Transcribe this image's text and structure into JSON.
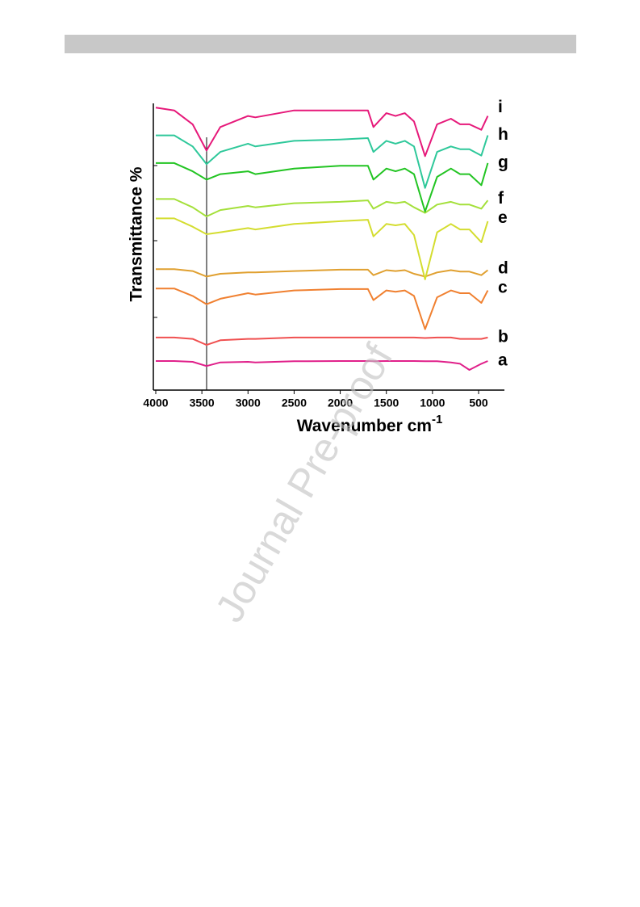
{
  "watermark": "Journal Pre-proof",
  "chart_data": {
    "type": "line",
    "ylabel": "Transmittance %",
    "xlabel": "Wavenumber cm",
    "xlabel_superscript": "-1",
    "xlim": [
      4000,
      220
    ],
    "ylim": [
      0,
      105
    ],
    "xticks": [
      4000,
      3500,
      3000,
      2500,
      2000,
      1500,
      1000,
      500
    ],
    "x": [
      4000,
      3800,
      3600,
      3450,
      3300,
      3000,
      2920,
      2500,
      2000,
      1700,
      1640,
      1500,
      1400,
      1300,
      1200,
      1080,
      950,
      800,
      700,
      600,
      470,
      400
    ],
    "series": [
      {
        "name": "a",
        "color": "#e0208a",
        "values": [
          10.5,
          10.5,
          10.2,
          8.7,
          10,
          10.2,
          10,
          10.4,
          10.5,
          10.5,
          10.4,
          10.5,
          10.5,
          10.5,
          10.5,
          10.4,
          10.4,
          10,
          9.5,
          7.3,
          9.5,
          10.5
        ]
      },
      {
        "name": "b",
        "color": "#f05050",
        "values": [
          19,
          19,
          18.5,
          16.3,
          18,
          18.5,
          18.5,
          19,
          19,
          19,
          19,
          19,
          19,
          19,
          19,
          18.8,
          19,
          19,
          18.5,
          18.5,
          18.5,
          19
        ]
      },
      {
        "name": "c",
        "color": "#f08030",
        "values": [
          36.7,
          36.7,
          34,
          31,
          33,
          35,
          34.5,
          36,
          36.5,
          36.5,
          32.5,
          36,
          35.5,
          36,
          34,
          22,
          33.5,
          36,
          35,
          35,
          31.5,
          36
        ]
      },
      {
        "name": "d",
        "color": "#e0a030",
        "values": [
          43.7,
          43.7,
          43,
          41,
          42,
          42.5,
          42.5,
          43,
          43.5,
          43.5,
          41.5,
          43.3,
          43,
          43.3,
          42,
          41,
          42.5,
          43.3,
          42.8,
          42.8,
          41.5,
          43.3
        ]
      },
      {
        "name": "e",
        "color": "#d4dd30",
        "values": [
          62,
          62,
          59,
          56.3,
          57,
          58.5,
          58,
          60,
          61,
          61.5,
          55.5,
          60,
          59.5,
          60,
          56,
          40,
          57,
          60,
          58,
          58,
          53.4,
          61
        ]
      },
      {
        "name": "f",
        "color": "#a4e03a",
        "values": [
          69,
          69,
          66,
          62.7,
          65,
          66.5,
          66,
          67.5,
          68,
          68.5,
          65.5,
          68,
          67.5,
          68,
          66,
          64,
          67,
          68,
          67,
          67,
          65.5,
          68.5
        ]
      },
      {
        "name": "g",
        "color": "#22c422",
        "values": [
          82,
          82,
          79,
          76,
          78,
          79,
          78,
          80,
          81,
          81,
          76,
          80,
          79,
          80,
          78,
          64.5,
          77,
          80,
          78,
          78,
          74,
          82
        ]
      },
      {
        "name": "h",
        "color": "#2ec89a",
        "values": [
          92,
          92,
          88,
          81.6,
          86,
          89,
          88,
          90,
          90.5,
          91,
          86,
          90,
          89,
          90,
          88,
          73,
          86,
          88,
          87,
          87,
          84.7,
          92
        ]
      },
      {
        "name": "i",
        "color": "#e6197a",
        "values": [
          102,
          101,
          96,
          86.5,
          95,
          99,
          98.5,
          101,
          101,
          101,
          95,
          100,
          99,
          100,
          97,
          84.5,
          96,
          98,
          96,
          96,
          94,
          99
        ]
      }
    ]
  }
}
